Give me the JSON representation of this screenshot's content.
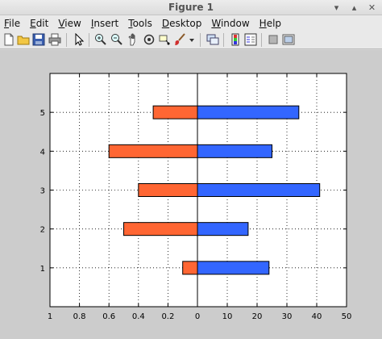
{
  "window": {
    "title": "Figure 1"
  },
  "menu": [
    {
      "key": "F",
      "rest": "ile"
    },
    {
      "key": "E",
      "rest": "dit"
    },
    {
      "key": "V",
      "rest": "iew"
    },
    {
      "key": "I",
      "rest": "nsert"
    },
    {
      "key": "T",
      "rest": "ools"
    },
    {
      "key": "D",
      "rest": "esktop"
    },
    {
      "key": "W",
      "rest": "indow"
    },
    {
      "key": "H",
      "rest": "elp"
    }
  ],
  "toolbar_icons": [
    "new-figure-icon",
    "open-file-icon",
    "save-icon",
    "print-icon",
    "pointer-icon",
    "zoom-in-icon",
    "zoom-out-icon",
    "pan-icon",
    "rotate-icon",
    "data-cursor-icon",
    "brush-icon",
    "brush-menu-icon",
    "link-plot-icon",
    "colorbar-icon",
    "legend-icon",
    "hide-plot-tools-icon",
    "show-plot-tools-icon"
  ],
  "colors": {
    "left_bar": "#ff6633",
    "right_bar": "#3366ff",
    "axis": "#000000"
  },
  "chart_data": [
    {
      "type": "bar",
      "orientation": "horizontal",
      "side": "left",
      "categories": [
        1,
        2,
        3,
        4,
        5
      ],
      "values": [
        0.1,
        0.5,
        0.4,
        0.6,
        0.3
      ],
      "xlim": [
        1,
        0
      ],
      "xticks": [
        "1",
        "0.8",
        "0.6",
        "0.4",
        "0.2",
        "0"
      ],
      "ylim": [
        0,
        6
      ],
      "yticks": [
        "1",
        "2",
        "3",
        "4",
        "5"
      ],
      "grid": true,
      "color": "#ff6633"
    },
    {
      "type": "bar",
      "orientation": "horizontal",
      "side": "right",
      "categories": [
        1,
        2,
        3,
        4,
        5
      ],
      "values": [
        24,
        17,
        41,
        25,
        34
      ],
      "xlim": [
        0,
        50
      ],
      "xticks": [
        "0",
        "10",
        "20",
        "30",
        "40",
        "50"
      ],
      "ylim": [
        0,
        6
      ],
      "grid": true,
      "color": "#3366ff"
    }
  ]
}
